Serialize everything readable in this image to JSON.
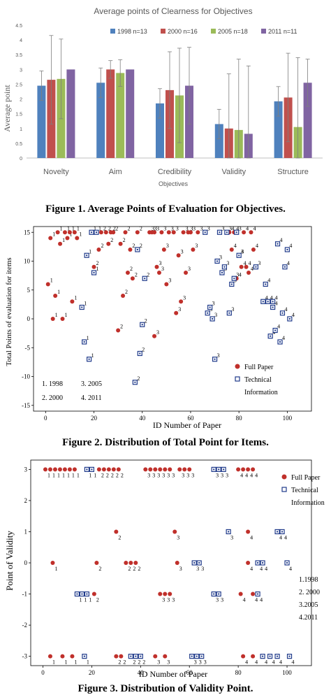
{
  "colors": {
    "bar_1998": "#4f81bd",
    "bar_2000": "#c0504d",
    "bar_2005": "#9bbb59",
    "bar_2011": "#8064a2",
    "full_paper": "#c0302b",
    "technical_information": "#1f3a8a",
    "axis": "#000000",
    "fig1_text": "#595959"
  },
  "figures": {
    "fig1": {
      "caption": "Figure 1.  Average Points of Evaluation for Objectives."
    },
    "fig2": {
      "caption": "Figure 2. Distribution of Total Point for Items."
    },
    "fig3": {
      "caption": "Figure 3. Distribution of Validity Point."
    }
  },
  "chart_data": [
    {
      "type": "bar",
      "title": "Average  points of Clearness for Objectives",
      "xlabel": "Objectives",
      "ylabel": "Average point",
      "ylim": [
        0,
        4.5
      ],
      "yticks": [
        "0",
        "0.5",
        "1",
        "1.5",
        "2",
        "2.5",
        "3",
        "3.5",
        "4",
        "4.5"
      ],
      "categories": [
        "Novelty",
        "Aim",
        "Credibility",
        "Validity",
        "Structure"
      ],
      "legend_position": "top-right",
      "grid": false,
      "error_bars": true,
      "series": [
        {
          "name": "1998 n=13",
          "values": [
            2.45,
            2.55,
            1.85,
            1.15,
            1.92
          ],
          "errors": [
            0.5,
            0.5,
            0.5,
            0.5,
            0.5
          ]
        },
        {
          "name": "2000 n=16",
          "values": [
            2.65,
            3.0,
            2.3,
            1.0,
            2.05
          ],
          "errors": [
            1.5,
            0.3,
            1.3,
            1.85,
            1.5
          ]
        },
        {
          "name": "2005 n=18",
          "values": [
            2.68,
            2.88,
            2.12,
            0.95,
            1.05
          ],
          "errors": [
            1.35,
            0.45,
            1.6,
            2.4,
            2.35
          ]
        },
        {
          "name": "2011 n=11",
          "values": [
            3.0,
            3.0,
            2.45,
            0.82,
            2.55
          ],
          "errors": [
            0.0,
            0.0,
            1.3,
            2.3,
            0.8
          ]
        }
      ]
    },
    {
      "type": "scatter",
      "xlabel": "ID Number of Paper",
      "ylabel": "Total  Points of evaluation for items",
      "xlim": [
        -5,
        110
      ],
      "ylim": [
        -16,
        16
      ],
      "xticks": [
        "0",
        "20",
        "40",
        "60",
        "80",
        "100"
      ],
      "yticks": [
        "-15",
        "-10",
        "-5",
        "0",
        "5",
        "10",
        "15"
      ],
      "legend_position": "bottom-right",
      "grid": false,
      "notes": [
        "1. 1998",
        "2. 2000",
        "3. 2005",
        "4. 2011"
      ],
      "series": [
        {
          "name": "Full Paper",
          "points": [
            [
              1,
              6,
              "1"
            ],
            [
              2,
              14,
              "1"
            ],
            [
              3,
              0,
              "1"
            ],
            [
              4,
              4,
              "1"
            ],
            [
              5,
              15,
              "1"
            ],
            [
              6,
              13,
              "1"
            ],
            [
              7,
              0,
              "1"
            ],
            [
              8,
              15,
              "1"
            ],
            [
              9,
              14,
              "1"
            ],
            [
              10,
              15,
              "1"
            ],
            [
              11,
              3,
              "1"
            ],
            [
              12,
              15,
              "1"
            ],
            [
              13,
              14,
              "1"
            ],
            [
              20,
              9,
              "2"
            ],
            [
              22,
              12,
              "2"
            ],
            [
              23,
              15,
              "2"
            ],
            [
              25,
              15,
              "2"
            ],
            [
              26,
              13,
              "2"
            ],
            [
              27,
              15,
              "2"
            ],
            [
              28,
              15,
              "2"
            ],
            [
              30,
              -2,
              "2"
            ],
            [
              31,
              13,
              "2"
            ],
            [
              32,
              4,
              "2"
            ],
            [
              33,
              15,
              "2"
            ],
            [
              34,
              8,
              "2"
            ],
            [
              35,
              12,
              "2"
            ],
            [
              36,
              7,
              "2"
            ],
            [
              38,
              15,
              "2"
            ],
            [
              43,
              15,
              "3"
            ],
            [
              44,
              15,
              "3"
            ],
            [
              45,
              15,
              "3"
            ],
            [
              46,
              9,
              "3"
            ],
            [
              47,
              8,
              "3"
            ],
            [
              48,
              15,
              "3"
            ],
            [
              49,
              12,
              "3"
            ],
            [
              50,
              6,
              "3"
            ],
            [
              51,
              15,
              "3"
            ],
            [
              53,
              15,
              "3"
            ],
            [
              54,
              1,
              "3"
            ],
            [
              55,
              11,
              "3"
            ],
            [
              56,
              3,
              "3"
            ],
            [
              57,
              15,
              "3"
            ],
            [
              58,
              8,
              "3"
            ],
            [
              59,
              15,
              "3"
            ],
            [
              60,
              15,
              "3"
            ],
            [
              61,
              12,
              "3"
            ],
            [
              63,
              15,
              "3"
            ],
            [
              76,
              15,
              "4"
            ],
            [
              77,
              12,
              "4"
            ],
            [
              78,
              15,
              "4"
            ],
            [
              79,
              7,
              "4"
            ],
            [
              80,
              11,
              "4"
            ],
            [
              81,
              9,
              "4"
            ],
            [
              82,
              15,
              "4"
            ],
            [
              83,
              9,
              "4"
            ],
            [
              84,
              8,
              "4"
            ],
            [
              85,
              15,
              "4"
            ],
            [
              86,
              12,
              "4"
            ],
            [
              45,
              -3,
              "3"
            ]
          ]
        },
        {
          "name": "Technical Information",
          "points": [
            [
              15,
              2,
              "1"
            ],
            [
              16,
              -4,
              "1"
            ],
            [
              17,
              11,
              "1"
            ],
            [
              18,
              -7,
              "1"
            ],
            [
              19,
              15,
              "1"
            ],
            [
              20,
              8,
              "1"
            ],
            [
              21,
              15,
              "1"
            ],
            [
              37,
              -11,
              "2"
            ],
            [
              38,
              12,
              "2"
            ],
            [
              39,
              -6,
              "2"
            ],
            [
              40,
              -1,
              "2"
            ],
            [
              41,
              7,
              "2"
            ],
            [
              66,
              15,
              "3"
            ],
            [
              67,
              1,
              "3"
            ],
            [
              68,
              2,
              "3"
            ],
            [
              69,
              0,
              "3"
            ],
            [
              70,
              -7,
              "3"
            ],
            [
              71,
              10,
              "3"
            ],
            [
              72,
              15,
              "3"
            ],
            [
              73,
              8,
              "3"
            ],
            [
              74,
              9,
              "3"
            ],
            [
              75,
              15,
              "3"
            ],
            [
              76,
              1,
              "3"
            ],
            [
              77,
              6,
              "3"
            ],
            [
              78,
              7,
              "3"
            ],
            [
              79,
              15,
              "3"
            ],
            [
              80,
              11,
              "3"
            ],
            [
              90,
              3,
              "4"
            ],
            [
              91,
              6,
              "4"
            ],
            [
              92,
              3,
              "4"
            ],
            [
              93,
              -3,
              "4"
            ],
            [
              94,
              2,
              "4"
            ],
            [
              95,
              -2,
              "4"
            ],
            [
              96,
              13,
              "4"
            ],
            [
              97,
              -4,
              "4"
            ],
            [
              98,
              1,
              "4"
            ],
            [
              99,
              9,
              "4"
            ],
            [
              100,
              12,
              "4"
            ],
            [
              101,
              0,
              "4"
            ],
            [
              87,
              9,
              "3"
            ],
            [
              94,
              3,
              "4"
            ]
          ]
        }
      ]
    },
    {
      "type": "scatter",
      "xlabel": "ID Number of Paper",
      "ylabel": "Point of Validity",
      "xlim": [
        -5,
        110
      ],
      "ylim": [
        -3.3,
        3.3
      ],
      "xticks": [
        "0",
        "20",
        "40",
        "60",
        "80",
        "100"
      ],
      "yticks": [
        "-3",
        "-2",
        "-1",
        "0",
        "1",
        "2",
        "3"
      ],
      "legend_position": "top-right",
      "grid": false,
      "notes": [
        "1.1998",
        "2. 2000",
        "3.2005",
        "4.2011"
      ],
      "series": [
        {
          "name": "Full Paper",
          "points": [
            [
              1,
              3,
              "1"
            ],
            [
              3,
              3,
              "1"
            ],
            [
              5,
              3,
              "1"
            ],
            [
              7,
              3,
              "1"
            ],
            [
              9,
              3,
              "1"
            ],
            [
              11,
              3,
              "1"
            ],
            [
              13,
              3,
              "1"
            ],
            [
              4,
              0,
              "1"
            ],
            [
              3,
              -3,
              "1"
            ],
            [
              8,
              -3,
              "1"
            ],
            [
              12,
              -3,
              "1"
            ],
            [
              21,
              -1,
              "2"
            ],
            [
              22,
              0,
              "2"
            ],
            [
              23,
              3,
              "2"
            ],
            [
              25,
              3,
              "2"
            ],
            [
              27,
              3,
              "2"
            ],
            [
              29,
              3,
              "2"
            ],
            [
              31,
              3,
              "2"
            ],
            [
              30,
              1,
              "2"
            ],
            [
              30,
              -3,
              "2"
            ],
            [
              32,
              -3,
              "2"
            ],
            [
              34,
              0,
              "2"
            ],
            [
              36,
              0,
              "2"
            ],
            [
              38,
              0,
              "2"
            ],
            [
              42,
              3,
              "3"
            ],
            [
              44,
              3,
              "3"
            ],
            [
              46,
              3,
              "3"
            ],
            [
              48,
              3,
              "3"
            ],
            [
              50,
              3,
              "3"
            ],
            [
              52,
              3,
              "3"
            ],
            [
              54,
              1,
              "3"
            ],
            [
              55,
              0,
              "3"
            ],
            [
              48,
              -1,
              "3"
            ],
            [
              50,
              -1,
              "3"
            ],
            [
              52,
              -1,
              "3"
            ],
            [
              46,
              -3,
              "3"
            ],
            [
              50,
              -3,
              "3"
            ],
            [
              56,
              3,
              "3"
            ],
            [
              58,
              3,
              "3"
            ],
            [
              60,
              3,
              "3"
            ],
            [
              80,
              3,
              "4"
            ],
            [
              82,
              3,
              "4"
            ],
            [
              84,
              3,
              "4"
            ],
            [
              86,
              3,
              "4"
            ],
            [
              84,
              1,
              "4"
            ],
            [
              84,
              0,
              "4"
            ],
            [
              81,
              -1,
              "4"
            ],
            [
              86,
              -1,
              "4"
            ],
            [
              82,
              -3,
              "4"
            ],
            [
              86,
              -3,
              "4"
            ]
          ]
        },
        {
          "name": "Technical Information",
          "points": [
            [
              14,
              -1,
              "1"
            ],
            [
              16,
              -1,
              "1"
            ],
            [
              18,
              -1,
              "1"
            ],
            [
              17,
              -3,
              "1"
            ],
            [
              18,
              3,
              "1"
            ],
            [
              20,
              3,
              "1"
            ],
            [
              36,
              -3,
              "2"
            ],
            [
              38,
              -3,
              "2"
            ],
            [
              40,
              -3,
              "2"
            ],
            [
              62,
              0,
              "3"
            ],
            [
              64,
              0,
              "3"
            ],
            [
              70,
              -1,
              "3"
            ],
            [
              72,
              -1,
              "3"
            ],
            [
              70,
              3,
              "3"
            ],
            [
              72,
              3,
              "3"
            ],
            [
              74,
              3,
              "3"
            ],
            [
              76,
              1,
              "3"
            ],
            [
              61,
              -3,
              "3"
            ],
            [
              63,
              -3,
              "3"
            ],
            [
              65,
              -3,
              "3"
            ],
            [
              88,
              0,
              "4"
            ],
            [
              90,
              0,
              "4"
            ],
            [
              96,
              1,
              "4"
            ],
            [
              98,
              1,
              "4"
            ],
            [
              100,
              0,
              "4"
            ],
            [
              90,
              -3,
              "4"
            ],
            [
              93,
              -3,
              "4"
            ],
            [
              96,
              -3,
              "4"
            ],
            [
              101,
              -3,
              "4"
            ],
            [
              88,
              -1,
              "4"
            ]
          ]
        }
      ]
    }
  ]
}
